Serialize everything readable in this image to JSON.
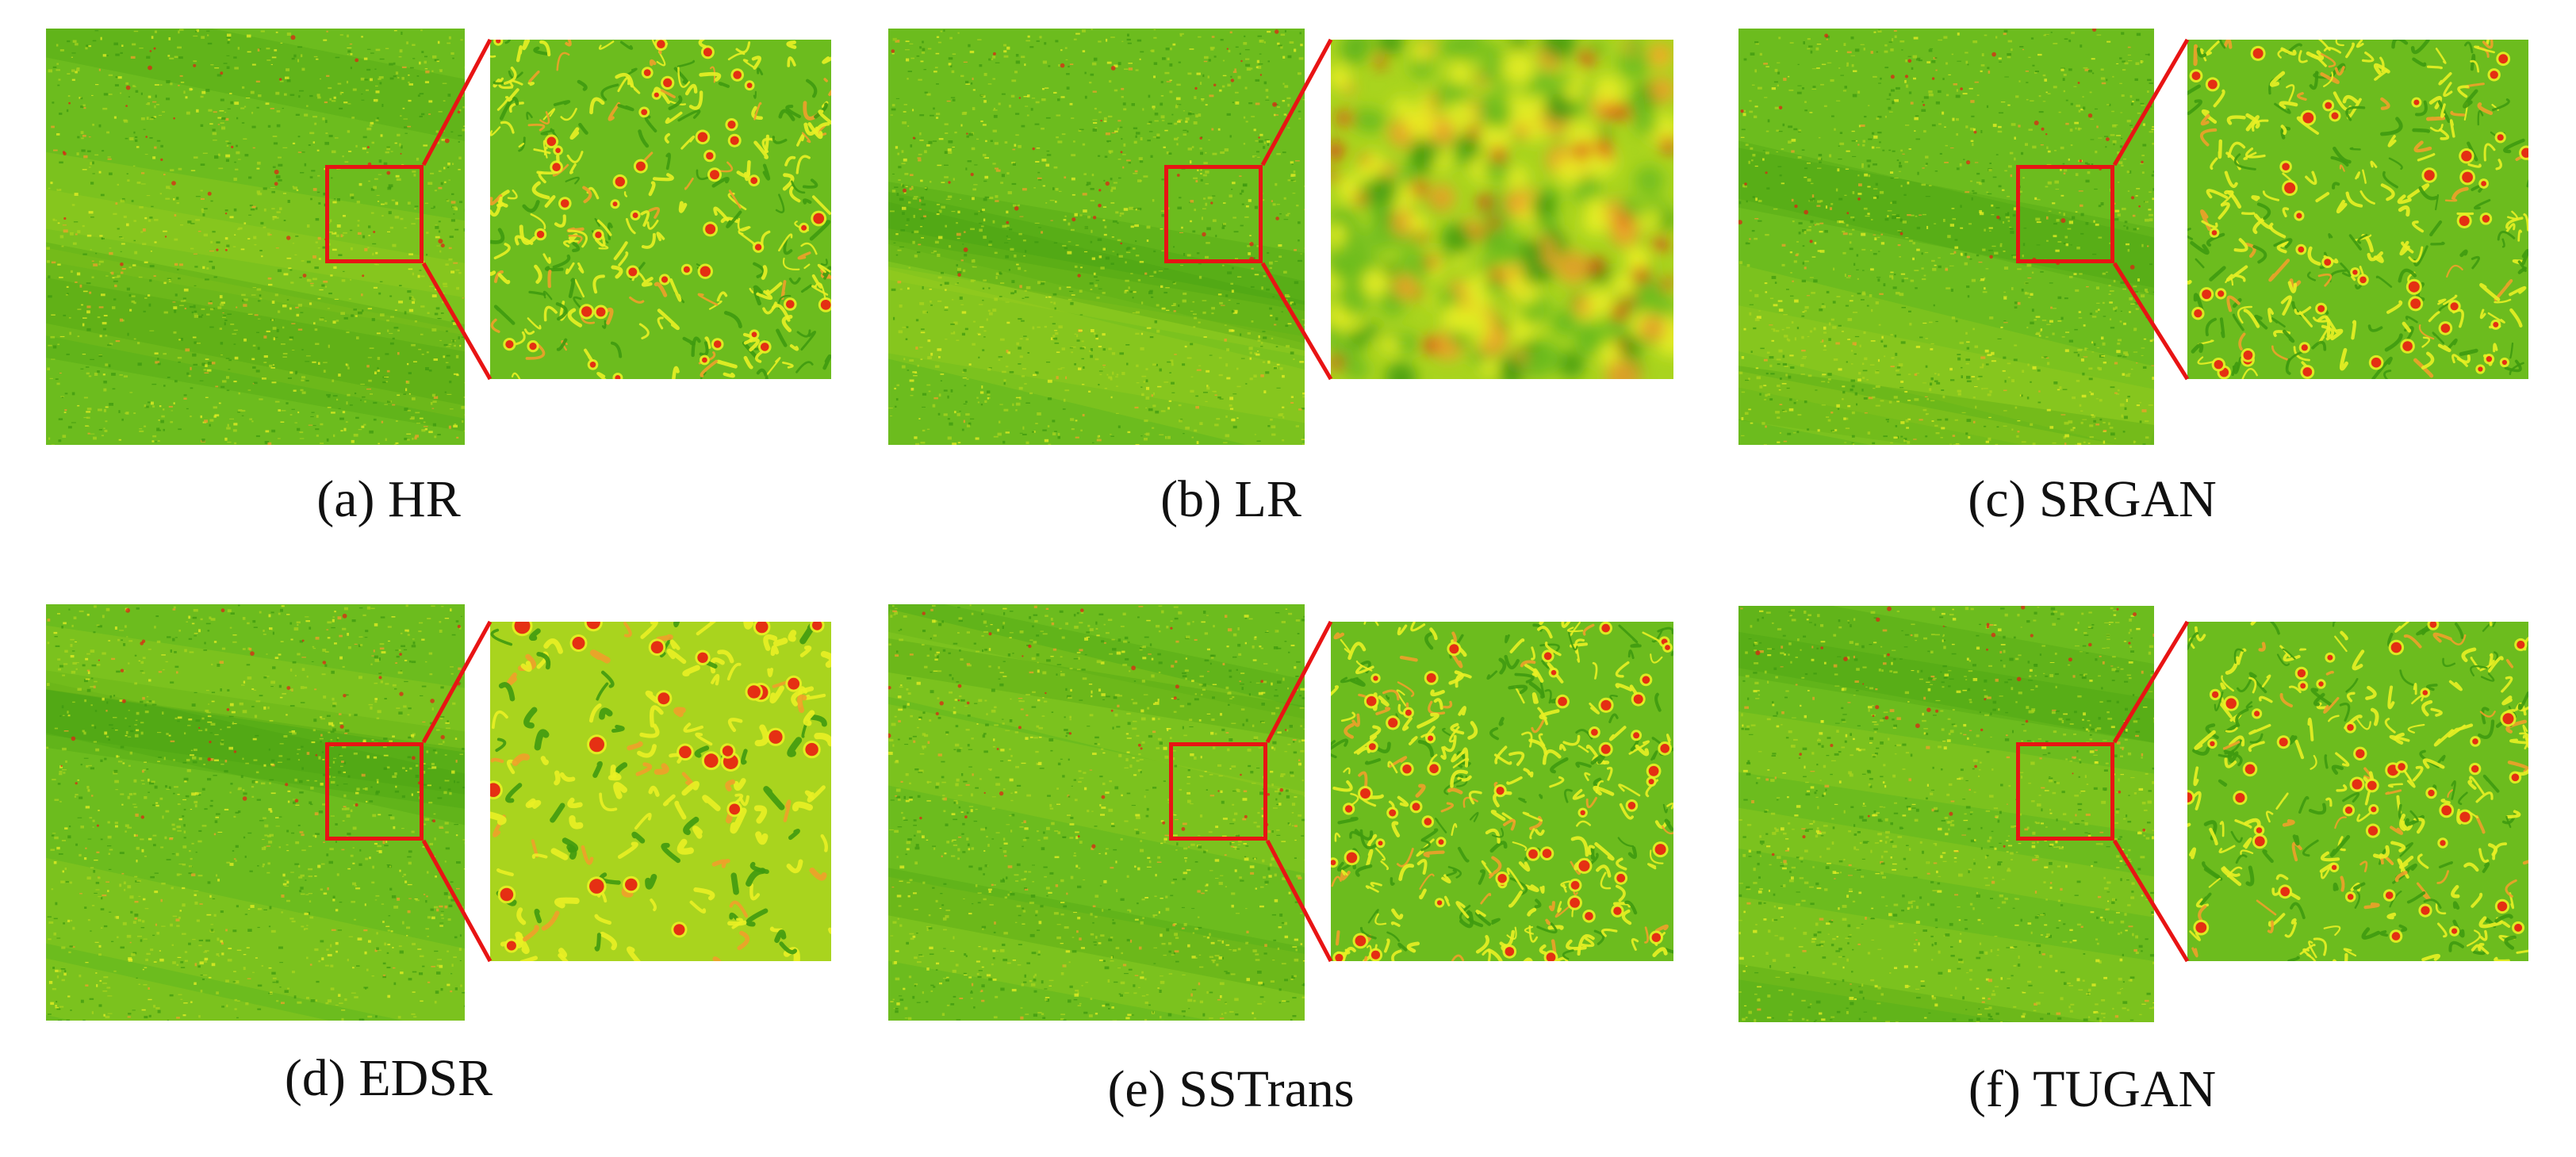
{
  "figure": {
    "panels": [
      {
        "id": "a",
        "caption": "(a) HR",
        "texture": "hr"
      },
      {
        "id": "b",
        "caption": "(b) LR",
        "texture": "lr"
      },
      {
        "id": "c",
        "caption": "(c) SRGAN",
        "texture": "srgan"
      },
      {
        "id": "d",
        "caption": "(d) EDSR",
        "texture": "edsr"
      },
      {
        "id": "e",
        "caption": "(e) SSTrans",
        "texture": "sstrans"
      },
      {
        "id": "f",
        "caption": "(f) TUGAN",
        "texture": "tugan"
      }
    ],
    "colors": {
      "green_dark": "#3f9a10",
      "green": "#6cbc1e",
      "yellow_green": "#a9d41e",
      "yellow": "#e9ef23",
      "orange": "#f0a02a",
      "red": "#e41b12",
      "highlight_box": "#e81414"
    }
  }
}
